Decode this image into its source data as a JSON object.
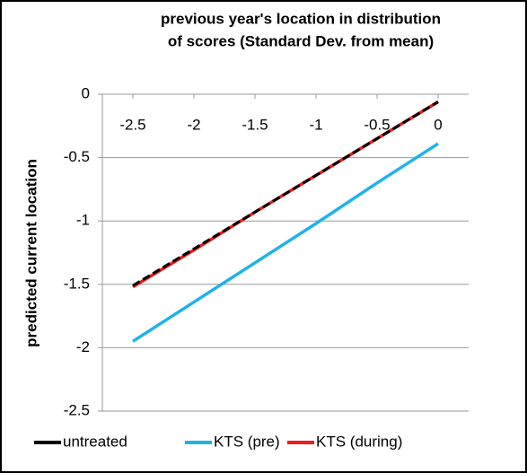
{
  "chart_data": {
    "type": "line",
    "title": [
      "previous year's location in distribution",
      "of scores (Standard Dev. from mean)"
    ],
    "y_label": "predicted current location",
    "x": [
      -2.5,
      -2,
      -1.5,
      -1,
      -0.5,
      0
    ],
    "series": [
      {
        "name": "untreated",
        "color": "#000000",
        "dashed": true,
        "values": [
          -1.51,
          -1.22,
          -0.93,
          -0.64,
          -0.35,
          -0.06
        ]
      },
      {
        "name": "KTS (pre)",
        "color": "#1fb3e8",
        "values": [
          -1.95,
          -1.64,
          -1.33,
          -1.02,
          -0.7,
          -0.39
        ]
      },
      {
        "name": "KTS (during)",
        "color": "#ee1c1c",
        "values": [
          -1.52,
          -1.23,
          -0.93,
          -0.64,
          -0.35,
          -0.06
        ]
      }
    ],
    "xlim": [
      -2.75,
      0.25
    ],
    "xticks": [
      -2.5,
      -2,
      -1.5,
      -1,
      -0.5,
      0
    ],
    "ylim": [
      -2.5,
      0
    ],
    "yticks": [
      0,
      -0.5,
      -1,
      -1.5,
      -2,
      -2.5
    ],
    "grid": true,
    "legend": "bottom"
  }
}
